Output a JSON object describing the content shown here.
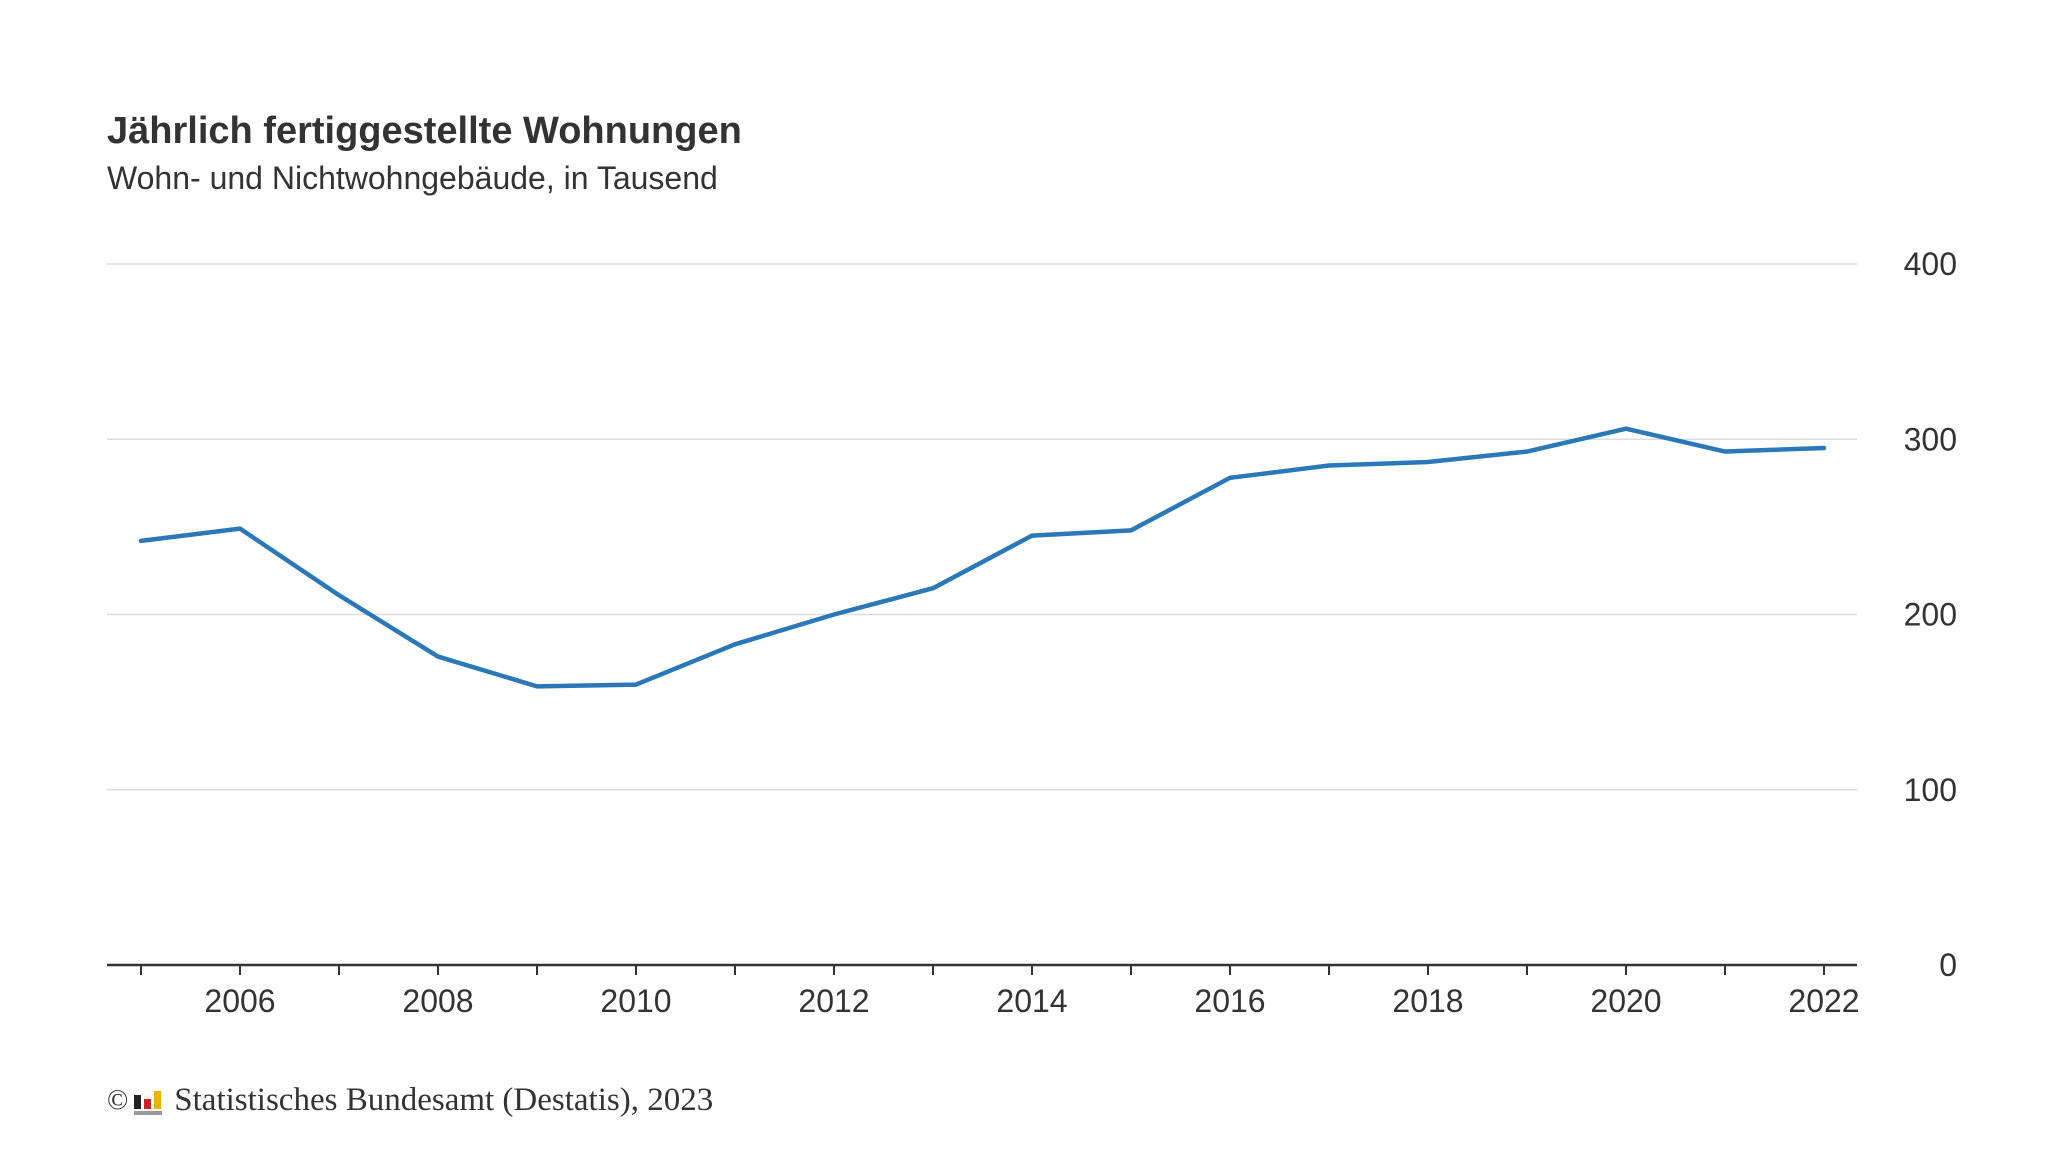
{
  "chart_data": {
    "type": "line",
    "title": "Jährlich fertiggestellte Wohnungen",
    "subtitle": "Wohn- und Nichtwohngebäude, in Tausend",
    "x": [
      2005,
      2006,
      2007,
      2008,
      2009,
      2010,
      2011,
      2012,
      2013,
      2014,
      2015,
      2016,
      2017,
      2018,
      2019,
      2020,
      2021,
      2022
    ],
    "x_tick_labels": [
      "2006",
      "2008",
      "2010",
      "2012",
      "2014",
      "2016",
      "2018",
      "2020",
      "2022"
    ],
    "y_tick_labels": [
      "0",
      "100",
      "200",
      "300",
      "400"
    ],
    "ylim": [
      0,
      400
    ],
    "series": [
      {
        "values": [
          242,
          249,
          211,
          176,
          159,
          160,
          183,
          200,
          215,
          245,
          248,
          278,
          285,
          287,
          293,
          306,
          293,
          295
        ]
      }
    ],
    "line_color": "#2b78b8",
    "grid": true,
    "y_axis_position": "right"
  },
  "source": {
    "copyright": "©",
    "logo_icon": "destatis-logo-icon",
    "text": "Statistisches Bundesamt (Destatis), 2023"
  }
}
